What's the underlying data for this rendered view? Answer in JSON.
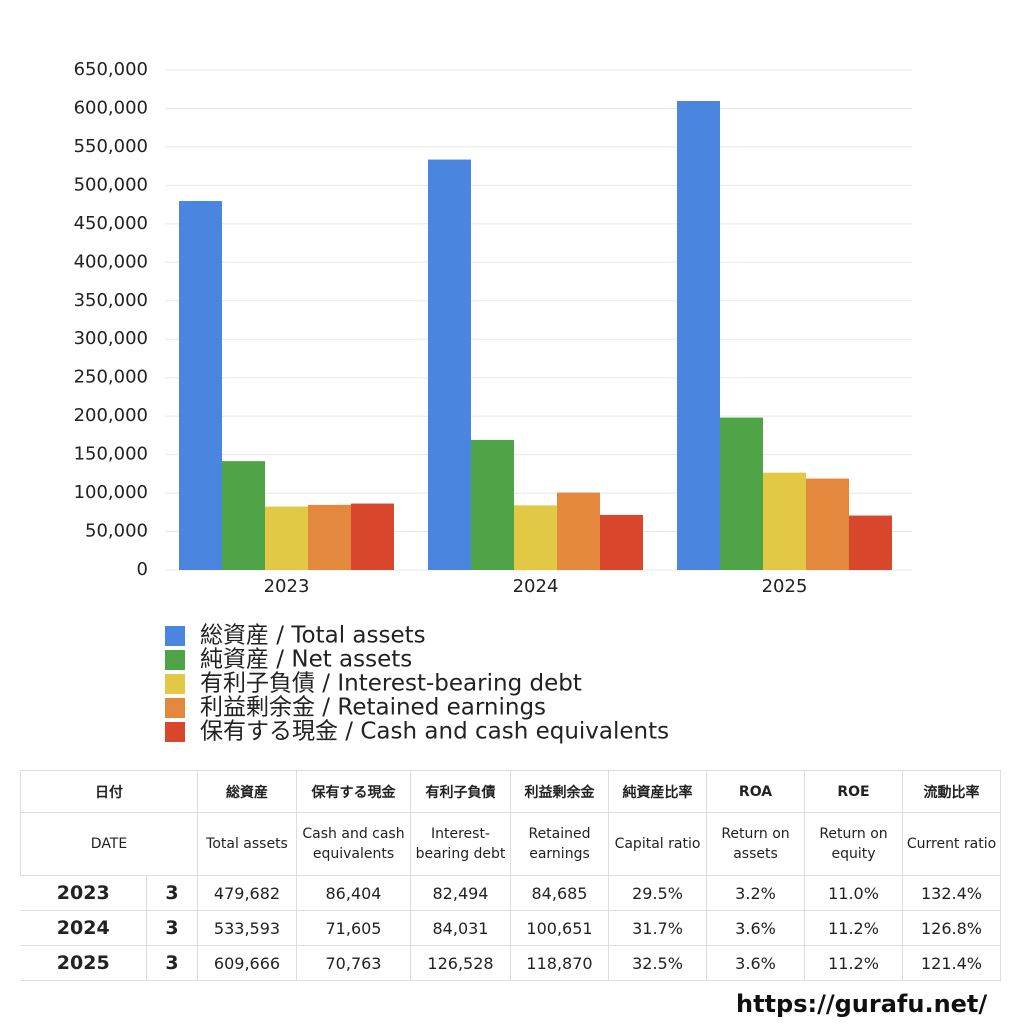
{
  "chart_data": {
    "type": "bar",
    "categories": [
      "2023",
      "2024",
      "2025"
    ],
    "series": [
      {
        "name": "総資産 / Total assets",
        "color": "#4a86e0",
        "values": [
          479682,
          533593,
          609666
        ]
      },
      {
        "name": "純資産 / Net assets",
        "color": "#4fa447",
        "values": [
          141506,
          169149,
          198141
        ]
      },
      {
        "name": "有利子負債 / Interest-bearing debt",
        "color": "#e2c845",
        "values": [
          82494,
          84031,
          126528
        ]
      },
      {
        "name": "利益剰余金 / Retained earnings",
        "color": "#e3883c",
        "values": [
          84685,
          100651,
          118870
        ]
      },
      {
        "name": "保有する現金 /  Cash and cash equivalents",
        "color": "#d8472c",
        "values": [
          86404,
          71605,
          70763
        ]
      }
    ],
    "ylim": [
      0,
      650000
    ],
    "yticks": [
      0,
      {
        "value": 50000,
        "label": "50,000"
      },
      {
        "value": 100000,
        "label": "100,000"
      },
      {
        "value": 150000,
        "label": "150,000"
      },
      {
        "value": 200000,
        "label": "200,000"
      },
      {
        "value": 250000,
        "label": "250,000"
      },
      {
        "value": 300000,
        "label": "300,000"
      },
      {
        "value": 350000,
        "label": "350,000"
      },
      {
        "value": 400000,
        "label": "400,000"
      },
      {
        "value": 450000,
        "label": "450,000"
      },
      {
        "value": 500000,
        "label": "500,000"
      },
      {
        "value": 550000,
        "label": "550,000"
      },
      {
        "value": 600000,
        "label": "600,000"
      },
      {
        "value": 650000,
        "label": "650,000"
      }
    ],
    "grid": true
  },
  "table": {
    "header_ja": [
      "日付",
      "総資産",
      "保有する現金",
      "有利子負債",
      "利益剰余金",
      "純資産比率",
      "ROA",
      "ROE",
      "流動比率"
    ],
    "header_en": [
      "DATE",
      "Total assets",
      "Cash and cash equivalents",
      "Interest-bearing debt",
      "Retained earnings",
      "Capital ratio",
      "Return on assets",
      "Return on equity",
      "Current ratio"
    ],
    "rows": [
      [
        "2023",
        "3",
        "479,682",
        "86,404",
        "82,494",
        "84,685",
        "29.5%",
        "3.2%",
        "11.0%",
        "132.4%"
      ],
      [
        "2024",
        "3",
        "533,593",
        "71,605",
        "84,031",
        "100,651",
        "31.7%",
        "3.6%",
        "11.2%",
        "126.8%"
      ],
      [
        "2025",
        "3",
        "609,666",
        "70,763",
        "126,528",
        "118,870",
        "32.5%",
        "3.6%",
        "11.2%",
        "121.4%"
      ]
    ]
  },
  "footer": "https://gurafu.net/"
}
